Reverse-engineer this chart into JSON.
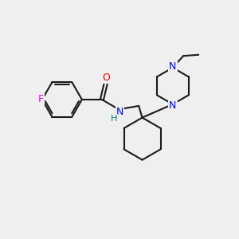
{
  "background_color": "#efefef",
  "bond_color": "#1a1a1a",
  "N_color": "#0000ee",
  "O_color": "#ee0000",
  "F_color": "#ee00ee",
  "H_color": "#008888",
  "line_width": 1.5,
  "figsize": [
    3.0,
    3.0
  ],
  "dpi": 100,
  "xlim": [
    0,
    10
  ],
  "ylim": [
    0,
    10
  ]
}
